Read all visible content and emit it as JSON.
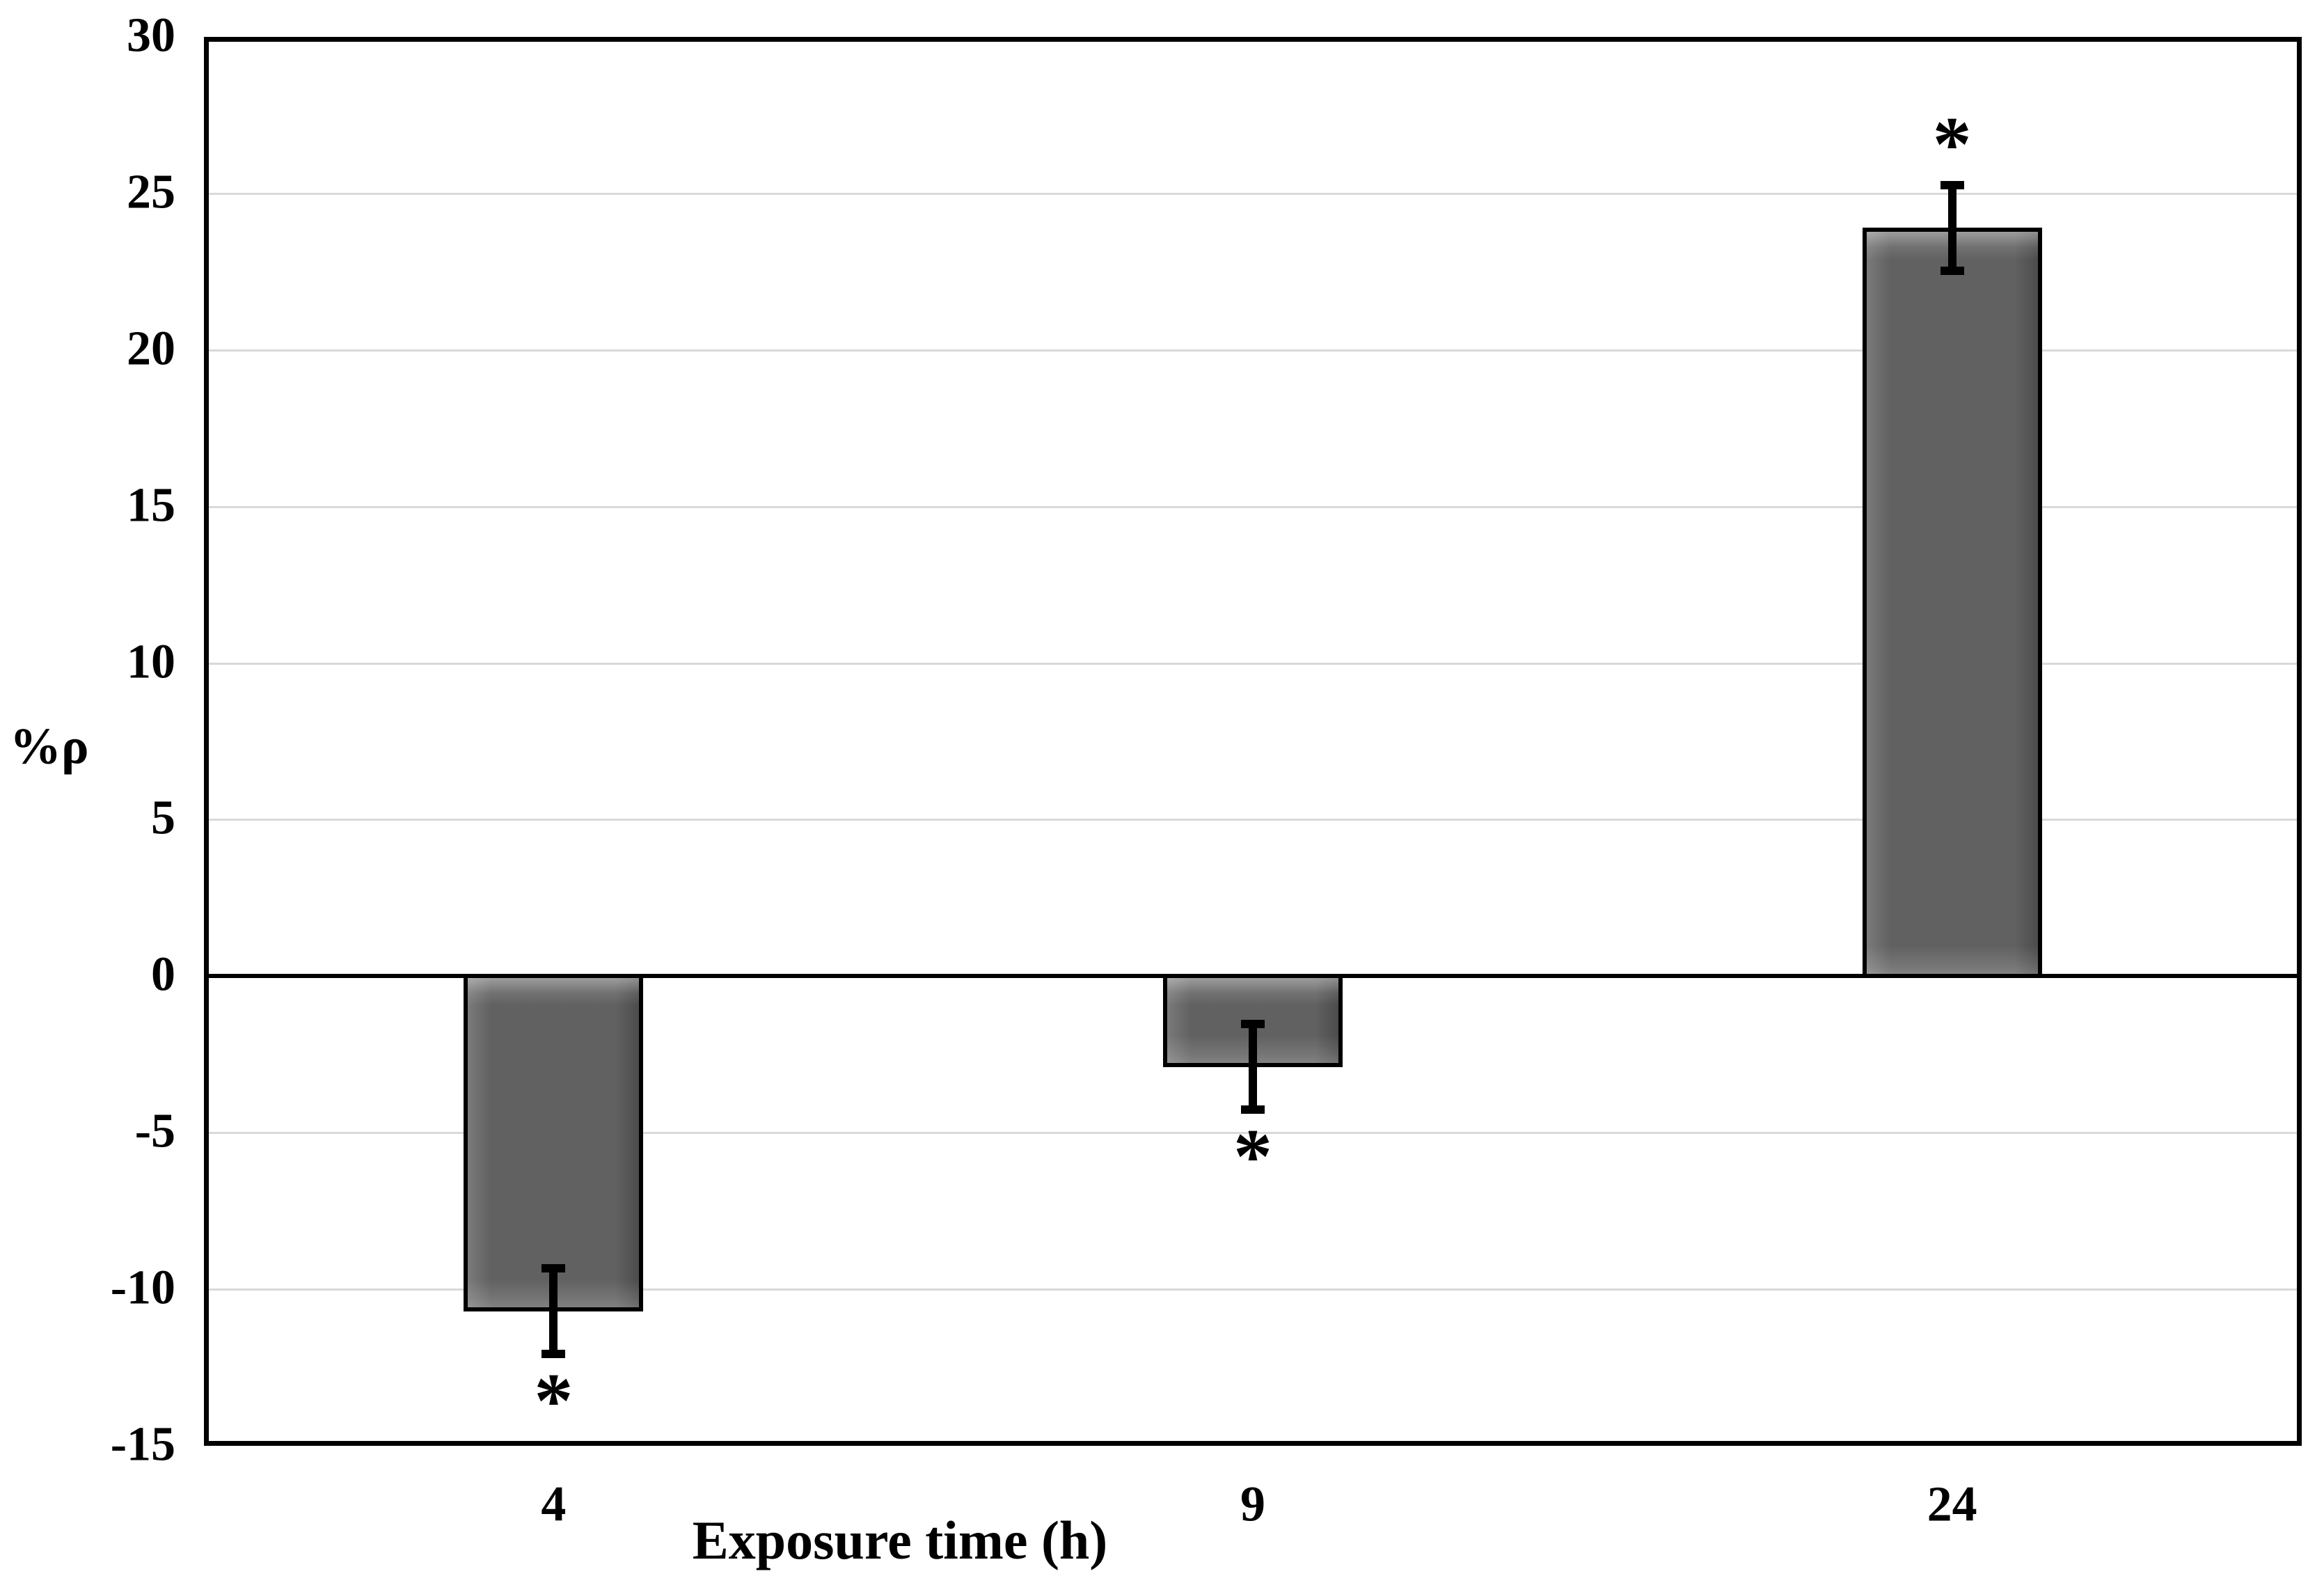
{
  "chart_data": {
    "type": "bar",
    "title": "",
    "xlabel": "Exposure time (h)",
    "ylabel": "%ρ",
    "categories": [
      "4",
      "9",
      "24"
    ],
    "values": [
      -10.7,
      -2.9,
      23.9
    ],
    "error_bars": [
      1.5,
      1.5,
      1.5
    ],
    "significance_markers": [
      "*",
      "*",
      "*"
    ],
    "ylim": [
      -15,
      30
    ],
    "ytick_step": 5,
    "ytick_labels": [
      "30",
      "25",
      "20",
      "15",
      "10",
      "5",
      "0",
      "-5",
      "-10",
      "-15"
    ],
    "grid": true,
    "legend": "none",
    "bar_color": "#616161",
    "bar_border_color": "#000000",
    "gridline_color": "#d9d9d9",
    "axis_color": "#000000",
    "background_color": "#ffffff"
  }
}
